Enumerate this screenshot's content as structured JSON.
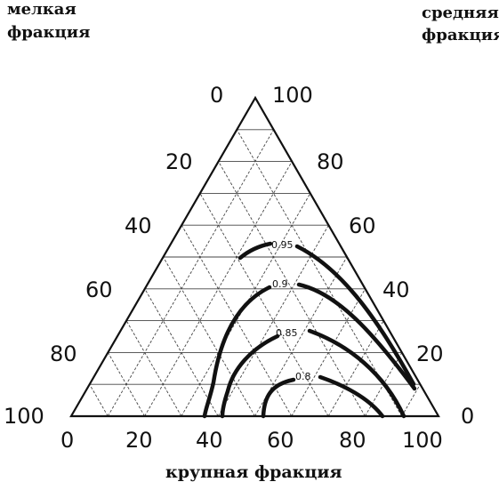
{
  "corner_labels": {
    "top_left": [
      "мелкая",
      "фракция"
    ],
    "top_right": [
      "средняя",
      "фракция"
    ],
    "bottom": "крупная фракция"
  },
  "left_ticks": [
    "0",
    "20",
    "40",
    "60",
    "80",
    "100"
  ],
  "right_ticks": [
    "100",
    "80",
    "60",
    "40",
    "20",
    "0"
  ],
  "bottom_ticks": [
    "0",
    "20",
    "40",
    "60",
    "80",
    "100"
  ],
  "contours": [
    {
      "label": "0.95",
      "points": [
        [
          54,
          13
        ],
        [
          51.6,
          8.3
        ],
        [
          47,
          4.5
        ],
        [
          42,
          2.5
        ]
      ]
    },
    {
      "label": "0.9",
      "points": [
        [
          54.5,
          16.3
        ],
        [
          47,
          9.5
        ],
        [
          41.3,
          4.8
        ],
        [
          38,
          1.5
        ],
        [
          36.9,
          0.6
        ]
      ]
    },
    {
      "label": "0.85",
      "points": [
        [
          57.5,
          22
        ],
        [
          52,
          14.4
        ],
        [
          47,
          10
        ],
        [
          41.4,
          5
        ]
      ]
    },
    {
      "label": "0.8",
      "points": [
        [
          64,
          19
        ],
        [
          59,
          12.5
        ],
        [
          52.5,
          6.8
        ],
        [
          47.5,
          3
        ]
      ]
    }
  ],
  "contour_pairs": [
    {
      "label": "0.95",
      "inner": [
        [
          54,
          13
        ],
        [
          51.6,
          8.3
        ],
        [
          47,
          4.5
        ],
        [
          42,
          2.5
        ]
      ],
      "outer": [
        [
          80,
          5
        ],
        [
          71,
          3.5
        ],
        [
          62,
          2
        ],
        [
          52,
          1
        ]
      ]
    },
    {
      "label": "0.9",
      "inner": [],
      "outer": []
    },
    {
      "label": "0.85",
      "inner": [],
      "outer": []
    },
    {
      "label": "0.8",
      "inner": [],
      "outer": []
    }
  ]
}
